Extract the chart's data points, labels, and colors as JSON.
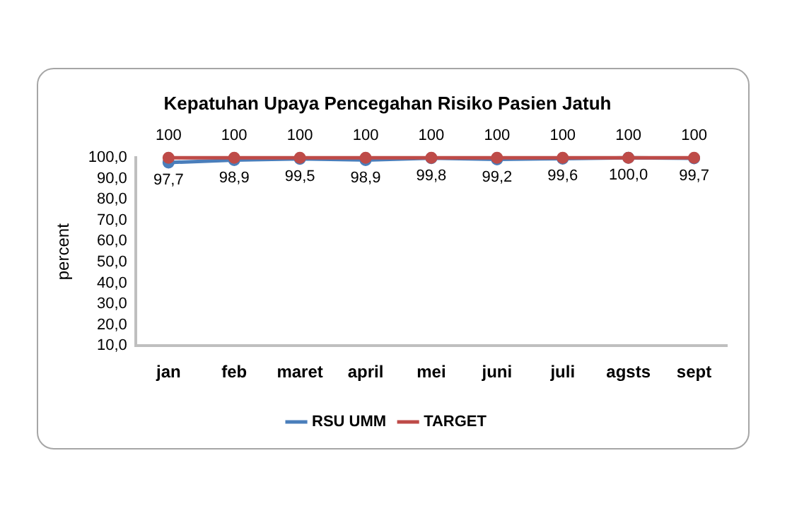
{
  "chart_data": {
    "type": "line",
    "title": "Kepatuhan Upaya Pencegahan Risiko Pasien Jatuh",
    "ylabel": "percent",
    "categories": [
      "jan",
      "feb",
      "maret",
      "april",
      "mei",
      "juni",
      "juli",
      "agsts",
      "sept"
    ],
    "series": [
      {
        "name": "RSU UMM",
        "color": "#4a7ebb",
        "values": [
          97.7,
          98.9,
          99.5,
          98.9,
          99.8,
          99.2,
          99.6,
          100.0,
          99.7
        ],
        "value_labels": [
          "97,7",
          "98,9",
          "99,5",
          "98,9",
          "99,8",
          "99,2",
          "99,6",
          "100,0",
          "99,7"
        ]
      },
      {
        "name": "TARGET",
        "color": "#be4b48",
        "values": [
          100,
          100,
          100,
          100,
          100,
          100,
          100,
          100,
          100
        ],
        "value_labels": [
          "100",
          "100",
          "100",
          "100",
          "100",
          "100",
          "100",
          "100",
          "100"
        ]
      }
    ],
    "ylim": [
      10,
      100
    ],
    "yticks": [
      {
        "value": 10,
        "label": "10,0"
      },
      {
        "value": 20,
        "label": "20,0"
      },
      {
        "value": 30,
        "label": "30,0"
      },
      {
        "value": 40,
        "label": "40,0"
      },
      {
        "value": 50,
        "label": "50,0"
      },
      {
        "value": 60,
        "label": "60,0"
      },
      {
        "value": 70,
        "label": "70,0"
      },
      {
        "value": 80,
        "label": "80,0"
      },
      {
        "value": 90,
        "label": "90,0"
      },
      {
        "value": 100,
        "label": "100,0"
      }
    ],
    "grid": false,
    "legend": "bottom",
    "marker": "circle",
    "line_style": "solid"
  }
}
